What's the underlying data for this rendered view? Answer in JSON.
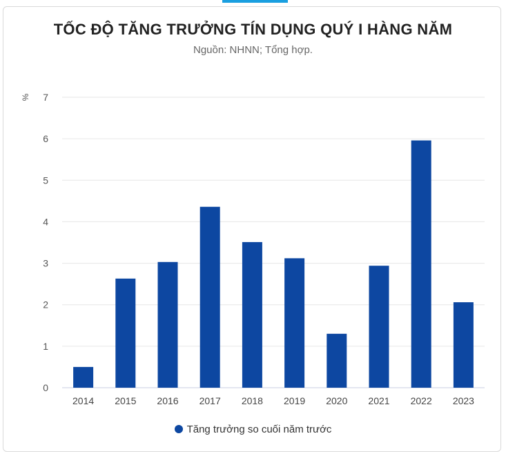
{
  "chart_data": {
    "type": "bar",
    "title": "TỐC ĐỘ TĂNG TRƯỞNG TÍN DỤNG QUÝ I HÀNG NĂM",
    "subtitle": "Nguồn: NHNN; Tổng hợp.",
    "unit": "%",
    "categories": [
      "2014",
      "2015",
      "2016",
      "2017",
      "2018",
      "2019",
      "2020",
      "2021",
      "2022",
      "2023"
    ],
    "series": [
      {
        "name": "Tăng trưởng so cuối năm trước",
        "color": "#0d47a1",
        "values": [
          0.5,
          2.63,
          3.03,
          4.36,
          3.51,
          3.12,
          1.3,
          2.94,
          5.96,
          2.06
        ]
      }
    ],
    "ylim": [
      0,
      7
    ],
    "yticks": [
      "0",
      "1",
      "2",
      "3",
      "4",
      "5",
      "6",
      "7"
    ],
    "grid": true,
    "legend_position": "bottom"
  }
}
